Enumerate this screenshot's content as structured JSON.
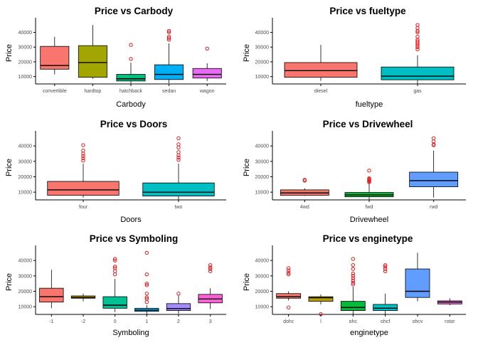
{
  "chart_data": [
    {
      "type": "boxplot",
      "title": "Price vs Carbody",
      "xlabel": "Carbody",
      "ylabel": "Price",
      "ylim": [
        5000,
        47000
      ],
      "yticks": [
        10000,
        20000,
        30000,
        40000
      ],
      "categories": [
        {
          "label": "convertible",
          "color": "#F8766D",
          "lower": 11500,
          "q1": 15000,
          "median": 17500,
          "q3": 30500,
          "upper": 37000,
          "outliers": []
        },
        {
          "label": "hardtop",
          "color": "#A3A500",
          "lower": 8500,
          "q1": 9500,
          "median": 19500,
          "q3": 31000,
          "upper": 45000,
          "outliers": []
        },
        {
          "label": "hatchback",
          "color": "#00BF7D",
          "lower": 5200,
          "q1": 7000,
          "median": 8500,
          "q3": 11500,
          "upper": 19500,
          "outliers": [
            22000,
            31500
          ]
        },
        {
          "label": "sedan",
          "color": "#00B0F6",
          "lower": 5500,
          "q1": 8000,
          "median": 11500,
          "q3": 18000,
          "upper": 32500,
          "outliers": [
            35000,
            36000,
            37000,
            40000,
            41000
          ]
        },
        {
          "label": "wagon",
          "color": "#E76BF3",
          "lower": 7000,
          "q1": 9000,
          "median": 11500,
          "q3": 15500,
          "upper": 19000,
          "outliers": [
            29000
          ]
        }
      ]
    },
    {
      "type": "boxplot",
      "title": "Price vs fueltype",
      "xlabel": "fueltype",
      "ylabel": "Price",
      "ylim": [
        5000,
        47000
      ],
      "yticks": [
        10000,
        20000,
        30000,
        40000
      ],
      "categories": [
        {
          "label": "diesel",
          "color": "#F8766D",
          "lower": 7100,
          "q1": 9500,
          "median": 14000,
          "q3": 19500,
          "upper": 31500,
          "outliers": []
        },
        {
          "label": "gas",
          "color": "#00BFC4",
          "lower": 5200,
          "q1": 7800,
          "median": 10300,
          "q3": 16500,
          "upper": 24500,
          "outliers": [
            28500,
            30000,
            31000,
            32000,
            33000,
            34000,
            35000,
            37000,
            40000,
            41000,
            43000,
            45000
          ]
        }
      ]
    },
    {
      "type": "boxplot",
      "title": "Price vs Doors",
      "xlabel": "Doors",
      "ylabel": "Price",
      "ylim": [
        5000,
        47000
      ],
      "yticks": [
        10000,
        20000,
        30000,
        40000
      ],
      "categories": [
        {
          "label": "four",
          "color": "#F8766D",
          "lower": 6500,
          "q1": 8000,
          "median": 11500,
          "q3": 17000,
          "upper": 28500,
          "outliers": [
            30500,
            32000,
            33500,
            35000,
            37000,
            40500
          ]
        },
        {
          "label": "two",
          "color": "#00BFC4",
          "lower": 5200,
          "q1": 7500,
          "median": 10000,
          "q3": 16000,
          "upper": 28500,
          "outliers": [
            31000,
            32500,
            34000,
            36000,
            39000,
            41000,
            45000
          ]
        }
      ]
    },
    {
      "type": "boxplot",
      "title": "Price vs Drivewheel",
      "xlabel": "Drivewheel",
      "ylabel": "Price",
      "ylim": [
        5000,
        47000
      ],
      "yticks": [
        10000,
        20000,
        30000,
        40000
      ],
      "categories": [
        {
          "label": "4wd",
          "color": "#F8766D",
          "lower": 7600,
          "q1": 8000,
          "median": 9500,
          "q3": 11500,
          "upper": 12500,
          "outliers": [
            17500,
            18000
          ]
        },
        {
          "label": "fwd",
          "color": "#00BA38",
          "lower": 5200,
          "q1": 7000,
          "median": 8200,
          "q3": 9800,
          "upper": 15500,
          "outliers": [
            16500,
            17000,
            17500,
            18000,
            18500,
            19000,
            24000
          ]
        },
        {
          "label": "rwd",
          "color": "#619CFF",
          "lower": 6500,
          "q1": 13500,
          "median": 17500,
          "q3": 23000,
          "upper": 37000,
          "outliers": [
            40500,
            41000,
            43000,
            45000
          ]
        }
      ]
    },
    {
      "type": "boxplot",
      "title": "Price vs Symboling",
      "xlabel": "Symboling",
      "ylabel": "Price",
      "ylim": [
        5000,
        47000
      ],
      "yticks": [
        10000,
        20000,
        30000,
        40000
      ],
      "categories": [
        {
          "label": "-1",
          "color": "#F8766D",
          "lower": 9000,
          "q1": 13000,
          "median": 16500,
          "q3": 22000,
          "upper": 34000,
          "outliers": []
        },
        {
          "label": "-2",
          "color": "#C49A00",
          "lower": 13500,
          "q1": 15500,
          "median": 16000,
          "q3": 17000,
          "upper": 18500,
          "outliers": []
        },
        {
          "label": "0",
          "color": "#00C094",
          "lower": 6500,
          "q1": 9000,
          "median": 11000,
          "q3": 16500,
          "upper": 28000,
          "outliers": [
            31000,
            33000,
            35000,
            36000,
            40000,
            41000
          ]
        },
        {
          "label": "1",
          "color": "#00B6EB",
          "lower": 5200,
          "q1": 7000,
          "median": 7800,
          "q3": 9000,
          "upper": 11000,
          "outliers": [
            13000,
            15000,
            16000,
            18500,
            24000,
            25000,
            31000,
            45000
          ]
        },
        {
          "label": "2",
          "color": "#A58AFF",
          "lower": 5500,
          "q1": 7500,
          "median": 8800,
          "q3": 12000,
          "upper": 17500,
          "outliers": [
            18500
          ]
        },
        {
          "label": "3",
          "color": "#FB61D7",
          "lower": 8500,
          "q1": 12500,
          "median": 15000,
          "q3": 18000,
          "upper": 22000,
          "outliers": [
            33000,
            34500,
            35500,
            37000
          ]
        }
      ]
    },
    {
      "type": "boxplot",
      "title": "Price vs enginetype",
      "xlabel": "enginetype",
      "ylabel": "Price",
      "ylim": [
        5000,
        47000
      ],
      "yticks": [
        10000,
        20000,
        30000,
        40000
      ],
      "categories": [
        {
          "label": "dohc",
          "color": "#F8766D",
          "lower": 14000,
          "q1": 15500,
          "median": 16500,
          "q3": 18500,
          "upper": 20000,
          "outliers": [
            9500,
            31000,
            32000,
            33500,
            35000
          ]
        },
        {
          "label": "l",
          "color": "#B79F00",
          "lower": 11500,
          "q1": 13500,
          "median": 15800,
          "q3": 16500,
          "upper": 18000,
          "outliers": [
            5200
          ]
        },
        {
          "label": "ohc",
          "color": "#00BA38",
          "lower": 5200,
          "q1": 7500,
          "median": 9500,
          "q3": 13500,
          "upper": 23000,
          "outliers": [
            24500,
            25500,
            27000,
            28500,
            30000,
            31500,
            34500,
            37000,
            41000
          ]
        },
        {
          "label": "ohcf",
          "color": "#00BFC4",
          "lower": 5200,
          "q1": 7500,
          "median": 9000,
          "q3": 11500,
          "upper": 18500,
          "outliers": [
            33000,
            34500,
            36000,
            37000
          ]
        },
        {
          "label": "ohcv",
          "color": "#619CFF",
          "lower": 13500,
          "q1": 16000,
          "median": 20000,
          "q3": 34500,
          "upper": 45000,
          "outliers": []
        },
        {
          "label": "rotor",
          "color": "#F564E3",
          "lower": 11000,
          "q1": 11800,
          "median": 13000,
          "q3": 13800,
          "upper": 15500,
          "outliers": []
        }
      ]
    }
  ]
}
